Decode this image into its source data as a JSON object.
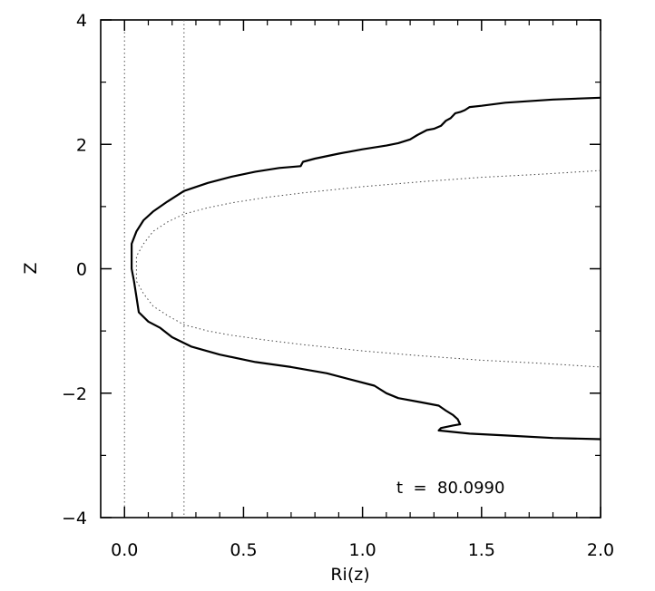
{
  "chart_data": {
    "type": "line",
    "title": "",
    "xlabel": "Ri(z)",
    "ylabel": "Z",
    "xlim": [
      -0.1,
      2.0
    ],
    "ylim": [
      -4,
      4
    ],
    "x_ticks": [
      0.0,
      0.5,
      1.0,
      1.5,
      2.0
    ],
    "x_tick_labels": [
      "0.0",
      "0.5",
      "1.0",
      "1.5",
      "2.0"
    ],
    "y_ticks": [
      -4,
      -2,
      0,
      2,
      4
    ],
    "y_tick_labels": [
      "−4",
      "−2",
      "0",
      "2",
      "4"
    ],
    "grid": false,
    "legend": "none",
    "annotation": "t  =  80.0990",
    "reference_lines_x": [
      0.0,
      0.25
    ],
    "series": [
      {
        "style": "solid",
        "points": [
          [
            2.0,
            2.75
          ],
          [
            1.8,
            2.72
          ],
          [
            1.6,
            2.67
          ],
          [
            1.5,
            2.62
          ],
          [
            1.45,
            2.6
          ],
          [
            1.43,
            2.55
          ],
          [
            1.41,
            2.52
          ],
          [
            1.39,
            2.5
          ],
          [
            1.37,
            2.42
          ],
          [
            1.35,
            2.38
          ],
          [
            1.33,
            2.3
          ],
          [
            1.3,
            2.25
          ],
          [
            1.27,
            2.23
          ],
          [
            1.23,
            2.15
          ],
          [
            1.2,
            2.08
          ],
          [
            1.15,
            2.02
          ],
          [
            1.1,
            1.98
          ],
          [
            1.0,
            1.92
          ],
          [
            0.9,
            1.85
          ],
          [
            0.8,
            1.77
          ],
          [
            0.75,
            1.72
          ],
          [
            0.74,
            1.65
          ],
          [
            0.65,
            1.62
          ],
          [
            0.55,
            1.56
          ],
          [
            0.45,
            1.48
          ],
          [
            0.35,
            1.38
          ],
          [
            0.25,
            1.25
          ],
          [
            0.18,
            1.08
          ],
          [
            0.12,
            0.92
          ],
          [
            0.08,
            0.78
          ],
          [
            0.05,
            0.6
          ],
          [
            0.03,
            0.4
          ],
          [
            0.03,
            0.2
          ],
          [
            0.03,
            0.0
          ],
          [
            0.04,
            -0.2
          ],
          [
            0.05,
            -0.45
          ],
          [
            0.06,
            -0.7
          ],
          [
            0.1,
            -0.85
          ],
          [
            0.15,
            -0.95
          ],
          [
            0.2,
            -1.1
          ],
          [
            0.28,
            -1.25
          ],
          [
            0.4,
            -1.38
          ],
          [
            0.55,
            -1.5
          ],
          [
            0.7,
            -1.58
          ],
          [
            0.85,
            -1.68
          ],
          [
            0.95,
            -1.78
          ],
          [
            1.05,
            -1.88
          ],
          [
            1.1,
            -2.0
          ],
          [
            1.15,
            -2.08
          ],
          [
            1.25,
            -2.15
          ],
          [
            1.32,
            -2.2
          ],
          [
            1.35,
            -2.28
          ],
          [
            1.38,
            -2.35
          ],
          [
            1.4,
            -2.42
          ],
          [
            1.41,
            -2.5
          ],
          [
            1.38,
            -2.52
          ],
          [
            1.33,
            -2.56
          ],
          [
            1.32,
            -2.6
          ],
          [
            1.45,
            -2.65
          ],
          [
            1.6,
            -2.68
          ],
          [
            1.8,
            -2.72
          ],
          [
            2.0,
            -2.74
          ]
        ]
      },
      {
        "style": "dotted",
        "points": [
          [
            2.0,
            1.58
          ],
          [
            1.75,
            1.52
          ],
          [
            1.5,
            1.47
          ],
          [
            1.25,
            1.4
          ],
          [
            1.0,
            1.32
          ],
          [
            0.75,
            1.22
          ],
          [
            0.6,
            1.15
          ],
          [
            0.45,
            1.06
          ],
          [
            0.35,
            0.98
          ],
          [
            0.25,
            0.88
          ],
          [
            0.18,
            0.75
          ],
          [
            0.12,
            0.6
          ],
          [
            0.08,
            0.4
          ],
          [
            0.05,
            0.2
          ],
          [
            0.05,
            0.0
          ],
          [
            0.05,
            -0.2
          ],
          [
            0.08,
            -0.4
          ],
          [
            0.12,
            -0.6
          ],
          [
            0.18,
            -0.75
          ],
          [
            0.25,
            -0.9
          ],
          [
            0.35,
            -1.0
          ],
          [
            0.45,
            -1.07
          ],
          [
            0.6,
            -1.15
          ],
          [
            0.75,
            -1.22
          ],
          [
            1.0,
            -1.32
          ],
          [
            1.25,
            -1.4
          ],
          [
            1.5,
            -1.47
          ],
          [
            1.75,
            -1.52
          ],
          [
            2.0,
            -1.58
          ]
        ]
      }
    ]
  }
}
